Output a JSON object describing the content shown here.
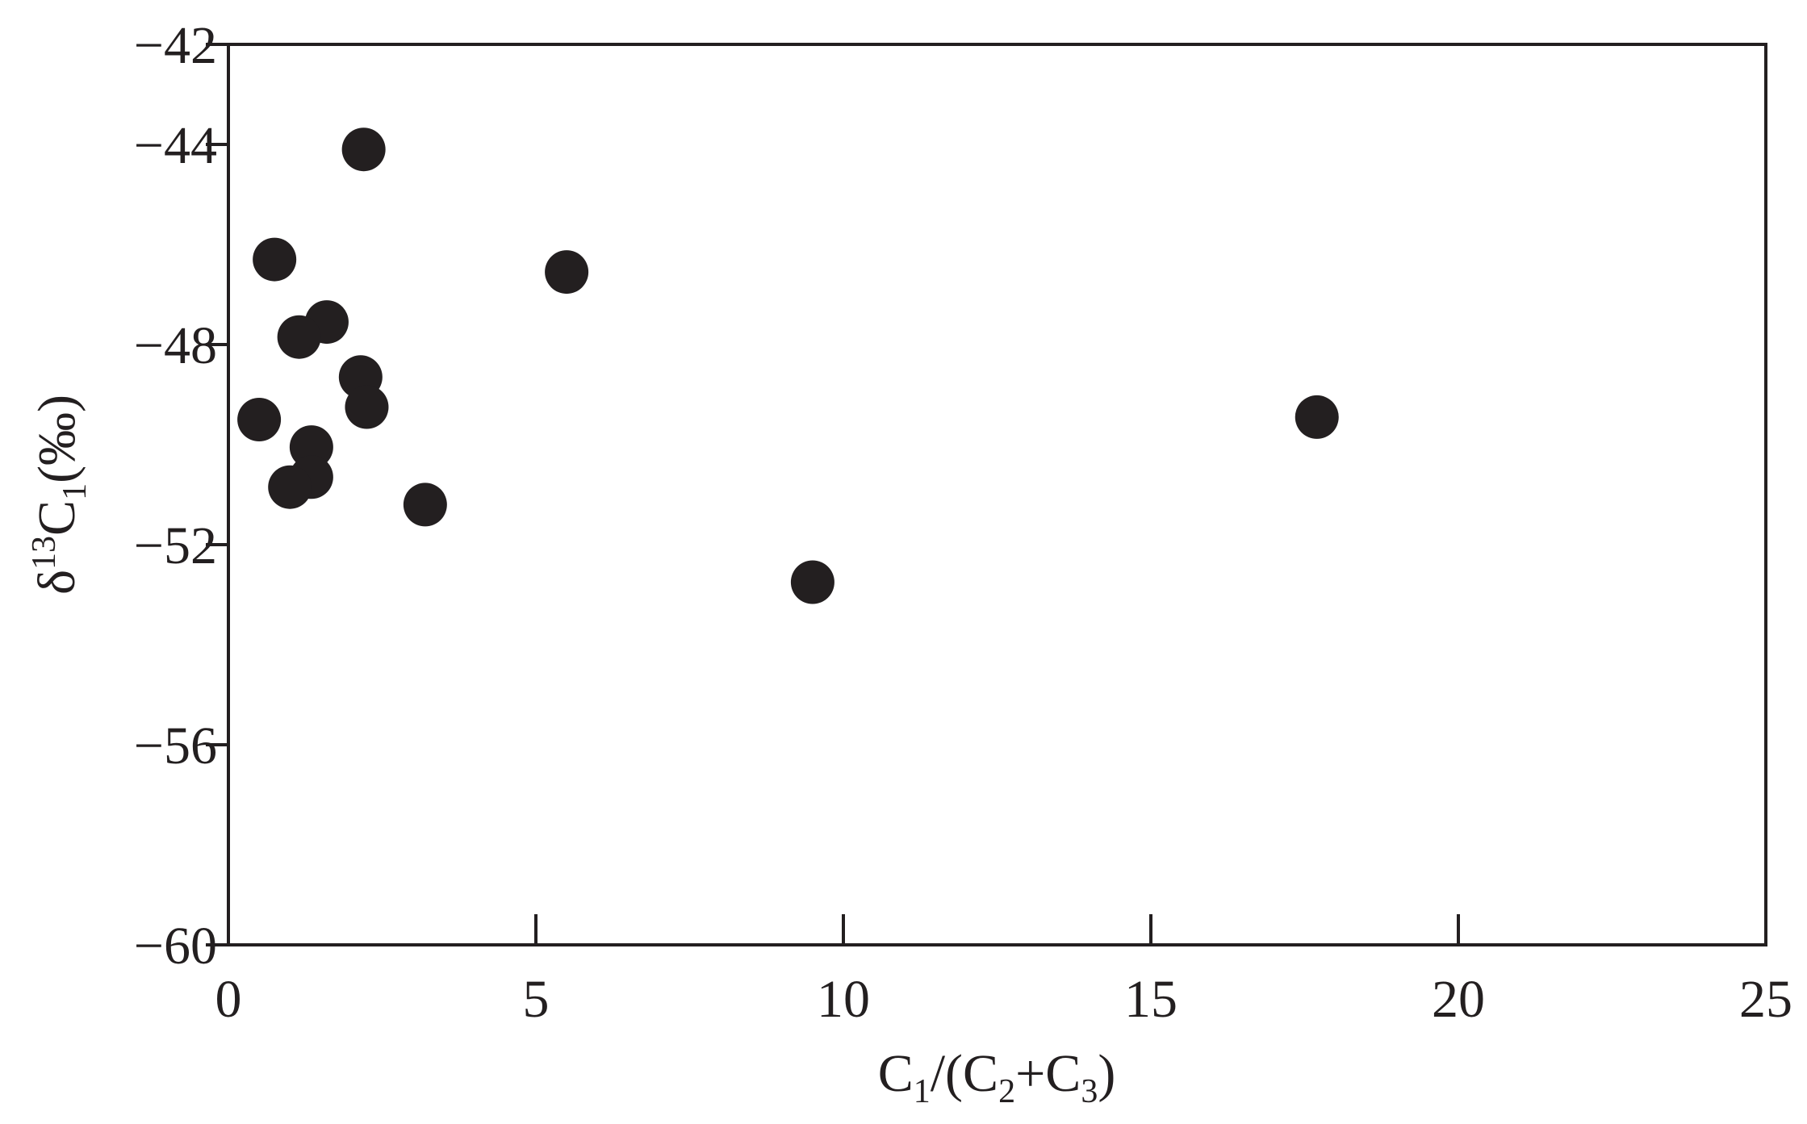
{
  "chart_data": {
    "type": "scatter",
    "title": "",
    "xlabel": {
      "parts": [
        {
          "text": "C",
          "sub": false
        },
        {
          "text": "1",
          "sub": true
        },
        {
          "text": "/(C",
          "sub": false
        },
        {
          "text": "2",
          "sub": true
        },
        {
          "text": "+C",
          "sub": false
        },
        {
          "text": "3",
          "sub": true
        },
        {
          "text": ")",
          "sub": false
        }
      ]
    },
    "ylabel": {
      "parts": [
        {
          "text": "δ",
          "sub": false,
          "sup": false
        },
        {
          "text": "13",
          "sup": true
        },
        {
          "text": "C",
          "sub": false,
          "sup": false
        },
        {
          "text": "1",
          "sub": true
        },
        {
          "text": "(‰)",
          "sub": false,
          "sup": false
        }
      ]
    },
    "xlim": [
      0,
      25
    ],
    "ylim": [
      -60,
      -42
    ],
    "x_ticks": [
      0,
      5,
      10,
      15,
      20,
      25
    ],
    "y_ticks": [
      -60,
      -56,
      -52,
      -48,
      -44,
      -42
    ],
    "x_tick_labels": [
      "0",
      "5",
      "10",
      "15",
      "20",
      "25"
    ],
    "y_tick_labels": [
      "−60",
      "−56",
      "−52",
      "−48",
      "−44",
      "−42"
    ],
    "grid": false,
    "marker_color": "#231f20",
    "series": [
      {
        "points": [
          {
            "x": 2.2,
            "y": -44.1
          },
          {
            "x": 0.75,
            "y": -46.3
          },
          {
            "x": 5.5,
            "y": -46.55
          },
          {
            "x": 1.6,
            "y": -47.55
          },
          {
            "x": 1.15,
            "y": -47.85
          },
          {
            "x": 2.15,
            "y": -48.65
          },
          {
            "x": 2.25,
            "y": -49.25
          },
          {
            "x": 0.5,
            "y": -49.5
          },
          {
            "x": 17.7,
            "y": -49.45
          },
          {
            "x": 1.35,
            "y": -50.05
          },
          {
            "x": 1.35,
            "y": -50.65
          },
          {
            "x": 1.0,
            "y": -50.85
          },
          {
            "x": 3.2,
            "y": -51.2
          },
          {
            "x": 9.5,
            "y": -52.75
          }
        ]
      }
    ]
  }
}
